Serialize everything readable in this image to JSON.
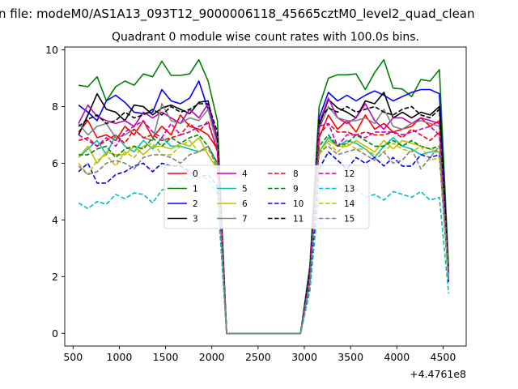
{
  "figure": {
    "suptitle": "n file: modeM0/AS1A13_093T12_9000006118_45665cztM0_level2_quad_clean",
    "title": "Quadrant 0 module wise count rates with 100.0s bins.",
    "x_offset_label": "+4.4761e8"
  },
  "chart_data": {
    "type": "line",
    "title": "Quadrant 0 module wise count rates with 100.0s bins.",
    "xlabel": "",
    "ylabel": "",
    "x_offset": "+4.4761e8",
    "xlim": [
      410,
      4750
    ],
    "ylim": [
      -0.45,
      10.1
    ],
    "xticks": [
      500,
      1000,
      1500,
      2000,
      2500,
      3000,
      3500,
      4000,
      4500
    ],
    "yticks": [
      0,
      2,
      4,
      6,
      8,
      10
    ],
    "grid": false,
    "legend_position": "center",
    "legend_columns": 4,
    "x": [
      560,
      660,
      760,
      860,
      960,
      1060,
      1160,
      1260,
      1360,
      1460,
      1560,
      1660,
      1760,
      1860,
      1960,
      2060,
      2160,
      2260,
      2360,
      2460,
      2560,
      2660,
      2760,
      2860,
      2960,
      3060,
      3160,
      3260,
      3360,
      3460,
      3560,
      3660,
      3760,
      3860,
      3960,
      4060,
      4160,
      4260,
      4360,
      4460,
      4560
    ],
    "series": [
      {
        "name": "0",
        "color": "#ff0000",
        "dash": "solid",
        "values": [
          7.1,
          7.5,
          6.9,
          7.0,
          6.8,
          7.3,
          7.0,
          7.5,
          6.9,
          7.3,
          7.0,
          7.7,
          7.3,
          7.2,
          7.0,
          6.5,
          0,
          0,
          0,
          0,
          0,
          0,
          0,
          0,
          0,
          2.0,
          6.9,
          7.7,
          7.2,
          7.5,
          7.1,
          7.7,
          7.2,
          7.4,
          7.1,
          7.2,
          7.3,
          7.6,
          7.3,
          7.5,
          2.2
        ]
      },
      {
        "name": "1",
        "color": "#008000",
        "dash": "solid",
        "values": [
          8.75,
          8.7,
          9.05,
          8.2,
          8.7,
          8.9,
          8.75,
          9.15,
          9.05,
          9.6,
          9.1,
          9.1,
          9.15,
          9.65,
          8.9,
          7.5,
          0,
          0,
          0,
          0,
          0,
          0,
          0,
          0,
          0,
          2.4,
          8.0,
          9.0,
          9.12,
          9.12,
          9.15,
          8.6,
          9.2,
          9.65,
          8.65,
          8.62,
          8.35,
          8.95,
          8.9,
          9.3,
          2.3
        ]
      },
      {
        "name": "2",
        "color": "#0000ff",
        "dash": "solid",
        "values": [
          8.05,
          7.8,
          7.5,
          8.2,
          8.4,
          8.15,
          7.8,
          7.75,
          7.8,
          8.6,
          8.2,
          8.1,
          8.3,
          8.9,
          7.9,
          6.9,
          0,
          0,
          0,
          0,
          0,
          0,
          0,
          0,
          0,
          2.2,
          7.6,
          8.5,
          8.2,
          8.4,
          8.2,
          8.4,
          8.55,
          8.4,
          8.2,
          8.35,
          8.5,
          8.6,
          8.6,
          8.45,
          2.1
        ]
      },
      {
        "name": "3",
        "color": "#000000",
        "dash": "solid",
        "values": [
          7.0,
          7.7,
          8.45,
          7.9,
          7.8,
          7.5,
          8.05,
          8.0,
          7.7,
          7.95,
          8.05,
          7.9,
          7.75,
          8.15,
          8.2,
          6.8,
          0,
          0,
          0,
          0,
          0,
          0,
          0,
          0,
          0,
          2.1,
          7.3,
          8.25,
          7.95,
          7.8,
          7.6,
          8.2,
          8.1,
          8.5,
          7.6,
          7.8,
          7.6,
          7.8,
          7.7,
          8.0,
          2.1
        ]
      },
      {
        "name": "4",
        "color": "#bf00bf",
        "dash": "solid",
        "values": [
          7.4,
          8.05,
          7.65,
          7.5,
          7.4,
          7.5,
          7.3,
          7.8,
          7.6,
          7.8,
          7.6,
          7.4,
          7.9,
          7.6,
          8.1,
          6.9,
          0,
          0,
          0,
          0,
          0,
          0,
          0,
          0,
          0,
          2.1,
          7.4,
          8.3,
          7.6,
          7.4,
          7.6,
          8.1,
          7.5,
          7.2,
          7.6,
          7.6,
          7.4,
          7.6,
          7.5,
          7.4,
          2.2
        ]
      },
      {
        "name": "5",
        "color": "#00bfbf",
        "dash": "solid",
        "values": [
          6.2,
          6.5,
          6.8,
          6.3,
          7.0,
          6.6,
          6.4,
          6.8,
          6.5,
          6.9,
          6.6,
          6.6,
          6.5,
          6.4,
          6.6,
          6.0,
          0,
          0,
          0,
          0,
          0,
          0,
          0,
          0,
          0,
          1.9,
          6.4,
          6.9,
          6.6,
          6.8,
          6.7,
          6.5,
          6.2,
          6.6,
          6.9,
          6.6,
          6.5,
          6.3,
          6.4,
          6.4,
          2.0
        ]
      },
      {
        "name": "6",
        "color": "#bfbf00",
        "dash": "solid",
        "values": [
          6.2,
          6.6,
          6.0,
          6.4,
          6.3,
          6.3,
          6.6,
          6.3,
          6.6,
          6.6,
          6.5,
          6.7,
          6.6,
          6.9,
          6.3,
          5.8,
          0,
          0,
          0,
          0,
          0,
          0,
          0,
          0,
          0,
          1.9,
          6.4,
          6.8,
          6.6,
          6.6,
          6.8,
          6.6,
          6.4,
          6.8,
          6.5,
          6.8,
          6.7,
          6.6,
          6.5,
          6.4,
          2.0
        ]
      },
      {
        "name": "7",
        "color": "#808080",
        "dash": "solid",
        "values": [
          7.4,
          7.0,
          7.3,
          7.4,
          6.9,
          7.0,
          7.2,
          6.9,
          6.8,
          8.1,
          7.5,
          7.4,
          7.6,
          7.5,
          7.9,
          6.6,
          0,
          0,
          0,
          0,
          0,
          0,
          0,
          0,
          0,
          2.0,
          7.2,
          8.0,
          7.6,
          7.5,
          7.5,
          7.6,
          7.4,
          7.9,
          7.3,
          7.2,
          7.4,
          7.5,
          7.4,
          7.3,
          2.1
        ]
      },
      {
        "name": "8",
        "color": "#ff0000",
        "dash": "dashed",
        "values": [
          6.8,
          6.9,
          6.6,
          6.8,
          7.0,
          6.7,
          7.2,
          6.9,
          7.0,
          6.8,
          6.9,
          7.0,
          7.4,
          7.1,
          7.5,
          6.4,
          0,
          0,
          0,
          0,
          0,
          0,
          0,
          0,
          0,
          1.9,
          7.0,
          7.4,
          7.1,
          7.1,
          7.0,
          7.1,
          7.0,
          7.0,
          7.1,
          6.9,
          7.2,
          7.0,
          6.8,
          7.1,
          2.0
        ]
      },
      {
        "name": "9",
        "color": "#008000",
        "dash": "dashed",
        "values": [
          6.3,
          6.3,
          6.5,
          6.6,
          6.2,
          6.5,
          6.6,
          6.5,
          6.9,
          6.6,
          6.9,
          6.7,
          6.9,
          7.0,
          6.6,
          6.0,
          0,
          0,
          0,
          0,
          0,
          0,
          0,
          0,
          0,
          1.8,
          6.6,
          7.0,
          6.6,
          6.7,
          7.0,
          6.8,
          6.6,
          6.6,
          6.8,
          6.6,
          6.8,
          6.6,
          6.5,
          6.6,
          1.9
        ]
      },
      {
        "name": "10",
        "color": "#0000ff",
        "dash": "dashed",
        "values": [
          5.7,
          6.0,
          5.3,
          5.3,
          5.6,
          5.7,
          5.9,
          6.0,
          5.7,
          6.0,
          5.9,
          5.9,
          5.7,
          5.5,
          5.6,
          5.2,
          0,
          0,
          0,
          0,
          0,
          0,
          0,
          0,
          0,
          1.6,
          5.8,
          6.4,
          6.1,
          5.8,
          6.2,
          6.0,
          6.2,
          5.9,
          6.2,
          5.9,
          5.9,
          6.3,
          6.2,
          6.3,
          1.8
        ]
      },
      {
        "name": "11",
        "color": "#000000",
        "dash": "dashed",
        "values": [
          7.3,
          7.55,
          7.7,
          7.4,
          7.5,
          7.8,
          7.6,
          7.7,
          7.9,
          7.7,
          8.0,
          7.8,
          7.9,
          8.1,
          8.1,
          7.1,
          0,
          0,
          0,
          0,
          0,
          0,
          0,
          0,
          0,
          2.2,
          7.5,
          7.95,
          7.8,
          8.0,
          7.8,
          7.9,
          8.0,
          7.8,
          7.7,
          7.9,
          8.0,
          7.7,
          7.6,
          7.9,
          2.1
        ]
      },
      {
        "name": "12",
        "color": "#bf00bf",
        "dash": "dashed",
        "values": [
          7.0,
          6.8,
          6.6,
          6.9,
          6.6,
          7.1,
          7.3,
          7.5,
          7.1,
          6.9,
          7.4,
          7.0,
          7.1,
          7.3,
          7.4,
          6.5,
          0,
          0,
          0,
          0,
          0,
          0,
          0,
          0,
          0,
          2.0,
          7.3,
          7.4,
          6.6,
          7.0,
          7.0,
          6.9,
          7.1,
          7.1,
          7.1,
          7.0,
          7.1,
          7.2,
          7.3,
          7.0,
          2.0
        ]
      },
      {
        "name": "13",
        "color": "#00bfbf",
        "dash": "dashed",
        "values": [
          4.6,
          4.4,
          4.65,
          4.55,
          4.9,
          4.75,
          4.95,
          4.9,
          4.6,
          5.05,
          5.15,
          5.4,
          5.45,
          5.5,
          5.45,
          4.9,
          0,
          0,
          0,
          0,
          0,
          0,
          0,
          0,
          0,
          1.5,
          5.0,
          5.1,
          5.2,
          4.9,
          5.1,
          4.8,
          4.9,
          4.7,
          5.0,
          4.9,
          4.8,
          5.0,
          4.7,
          4.8,
          1.4
        ]
      },
      {
        "name": "14",
        "color": "#bfbf00",
        "dash": "dashed",
        "values": [
          6.0,
          5.6,
          6.1,
          6.3,
          5.9,
          6.4,
          6.2,
          6.6,
          6.7,
          6.3,
          6.3,
          6.6,
          6.8,
          6.4,
          6.5,
          5.9,
          0,
          0,
          0,
          0,
          0,
          0,
          0,
          0,
          0,
          1.8,
          6.3,
          6.7,
          6.4,
          6.7,
          6.5,
          6.5,
          6.3,
          6.4,
          6.7,
          6.5,
          6.4,
          6.6,
          6.1,
          6.2,
          1.9
        ]
      },
      {
        "name": "15",
        "color": "#808080",
        "dash": "dashed",
        "values": [
          5.9,
          5.6,
          5.7,
          6.0,
          6.1,
          6.0,
          5.8,
          6.2,
          6.3,
          6.3,
          6.2,
          6.0,
          6.3,
          6.4,
          6.6,
          5.8,
          0,
          0,
          0,
          0,
          0,
          0,
          0,
          0,
          0,
          1.8,
          6.4,
          6.6,
          6.3,
          6.4,
          6.5,
          6.3,
          6.1,
          6.4,
          6.0,
          6.1,
          6.5,
          5.8,
          6.2,
          6.6,
          1.9
        ]
      }
    ]
  }
}
